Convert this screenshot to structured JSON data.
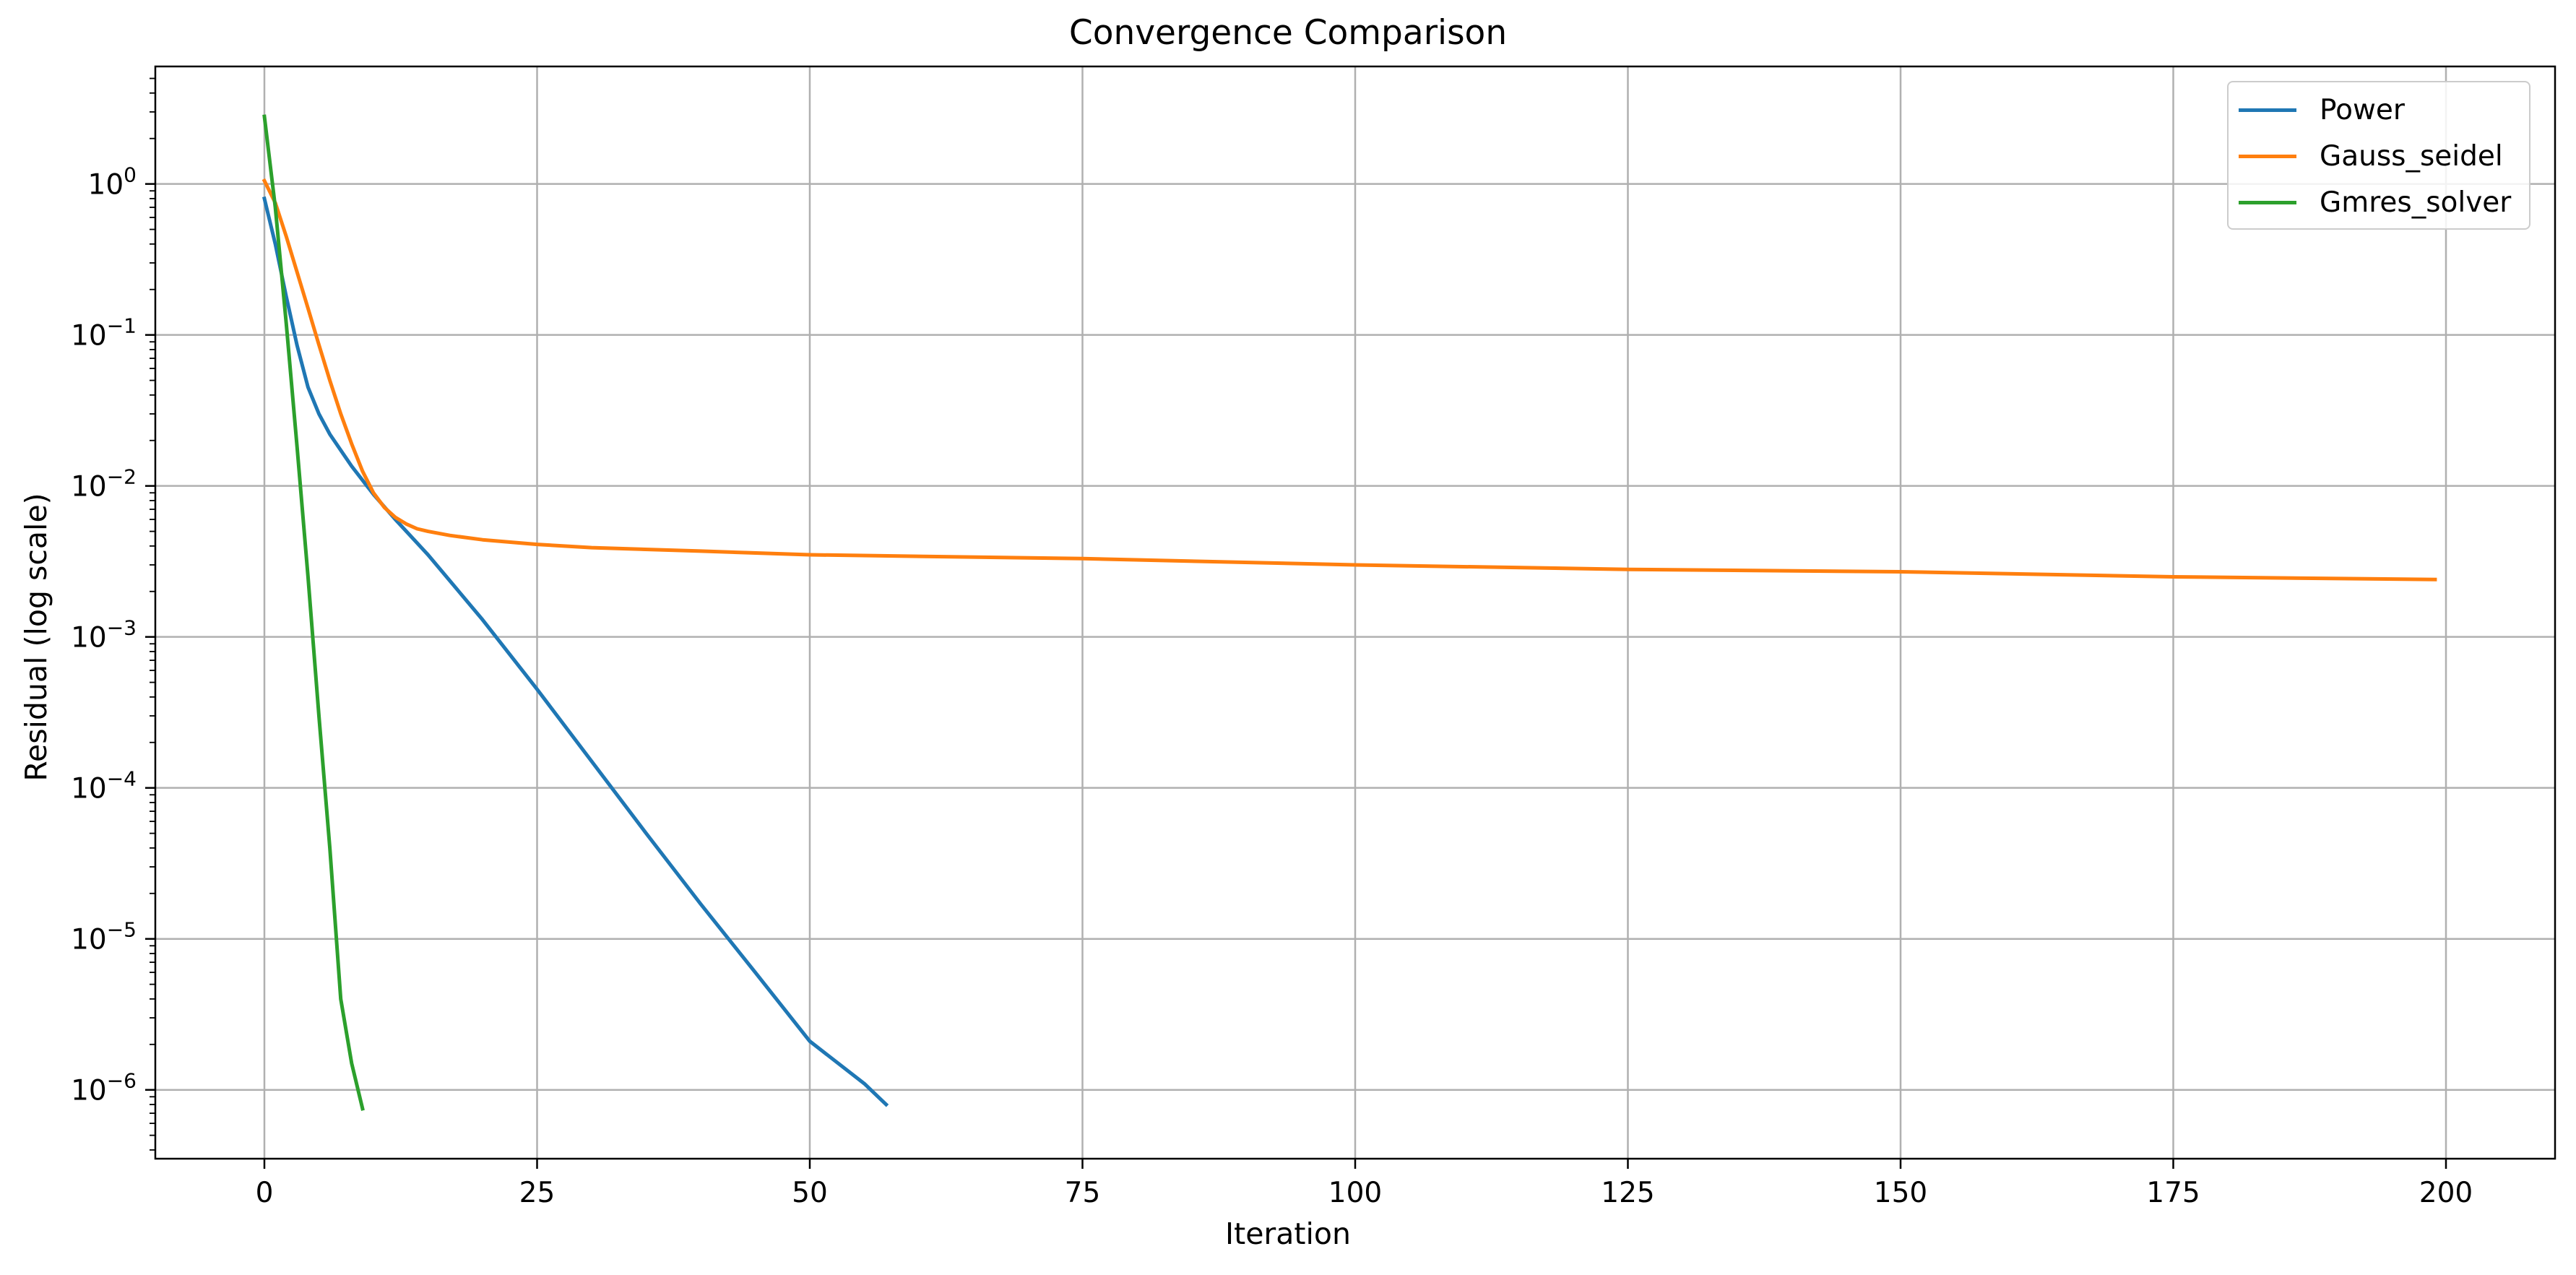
{
  "chart_data": {
    "type": "line",
    "title": "Convergence Comparison",
    "xlabel": "Iteration",
    "ylabel": "Residual (log scale)",
    "xlim": [
      -10,
      210
    ],
    "ylim": [
      3.5e-07,
      6.0
    ],
    "yscale": "log",
    "xticks": [
      0,
      25,
      50,
      75,
      100,
      125,
      150,
      175,
      200
    ],
    "xtick_labels": [
      "0",
      "25",
      "50",
      "75",
      "100",
      "125",
      "150",
      "175",
      "200"
    ],
    "yticks": [
      1e-06,
      1e-05,
      0.0001,
      0.001,
      0.01,
      0.1,
      1
    ],
    "ytick_labels": [
      {
        "base": "10",
        "exp": "−6"
      },
      {
        "base": "10",
        "exp": "−5"
      },
      {
        "base": "10",
        "exp": "−4"
      },
      {
        "base": "10",
        "exp": "−3"
      },
      {
        "base": "10",
        "exp": "−2"
      },
      {
        "base": "10",
        "exp": "−1"
      },
      {
        "base": "10",
        "exp": "0"
      }
    ],
    "grid": true,
    "legend_position": "top-right",
    "series": [
      {
        "name": "Power",
        "color": "#1f77b4",
        "x": [
          0,
          1,
          2,
          3,
          4,
          5,
          6,
          8,
          10,
          12,
          15,
          20,
          25,
          30,
          35,
          40,
          45,
          50,
          55,
          57
        ],
        "y": [
          0.8,
          0.4,
          0.18,
          0.085,
          0.045,
          0.03,
          0.022,
          0.0135,
          0.0088,
          0.006,
          0.0035,
          0.0013,
          0.00045,
          0.00015,
          5e-05,
          1.7e-05,
          6e-06,
          2.1e-06,
          1.1e-06,
          8e-07
        ]
      },
      {
        "name": "Gauss_seidel",
        "color": "#ff7f0e",
        "x": [
          0,
          1,
          2,
          3,
          4,
          5,
          6,
          7,
          8,
          9,
          10,
          11,
          12,
          13,
          14,
          15,
          17,
          20,
          25,
          30,
          40,
          50,
          75,
          100,
          125,
          150,
          175,
          199
        ],
        "y": [
          1.05,
          0.75,
          0.45,
          0.26,
          0.15,
          0.086,
          0.05,
          0.03,
          0.019,
          0.0125,
          0.009,
          0.0072,
          0.0062,
          0.0056,
          0.0052,
          0.005,
          0.0047,
          0.0044,
          0.0041,
          0.0039,
          0.0037,
          0.0035,
          0.0033,
          0.003,
          0.0028,
          0.0027,
          0.0025,
          0.0024
        ]
      },
      {
        "name": "Gmres_solver",
        "color": "#2ca02c",
        "x": [
          0,
          1,
          2,
          3,
          4,
          5,
          6,
          7,
          8,
          9
        ],
        "y": [
          2.8,
          0.7,
          0.12,
          0.018,
          0.0025,
          0.0003,
          4e-05,
          4e-06,
          1.5e-06,
          7.5e-07
        ]
      }
    ]
  }
}
